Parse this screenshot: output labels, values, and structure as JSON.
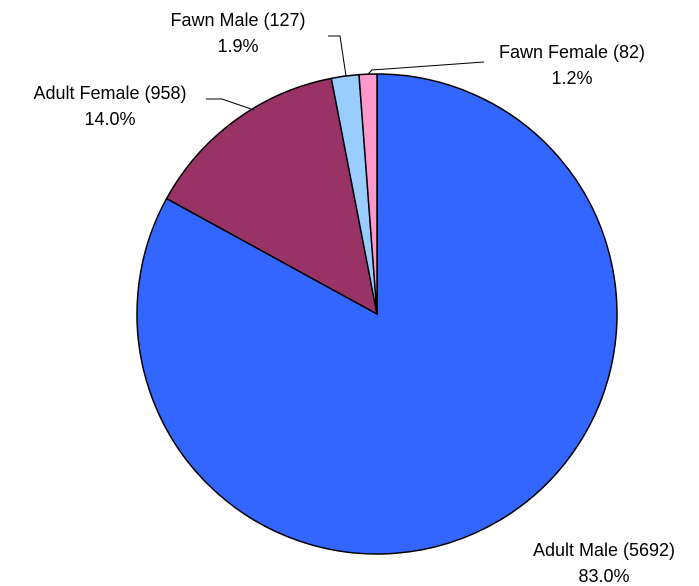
{
  "chart_data": {
    "type": "pie",
    "title": "",
    "slices": [
      {
        "label": "Adult Male (5692)",
        "pct": "83.0%",
        "value": 5692,
        "color": "#3366FF"
      },
      {
        "label": "Adult Female (958)",
        "pct": "14.0%",
        "value": 958,
        "color": "#993366"
      },
      {
        "label": "Fawn Male (127)",
        "pct": "1.9%",
        "value": 127,
        "color": "#99CCFF"
      },
      {
        "label": "Fawn Female (82)",
        "pct": "1.2%",
        "value": 82,
        "color": "#FF99CC"
      }
    ],
    "start_angle": "12 o'clock",
    "direction": "clockwise"
  }
}
